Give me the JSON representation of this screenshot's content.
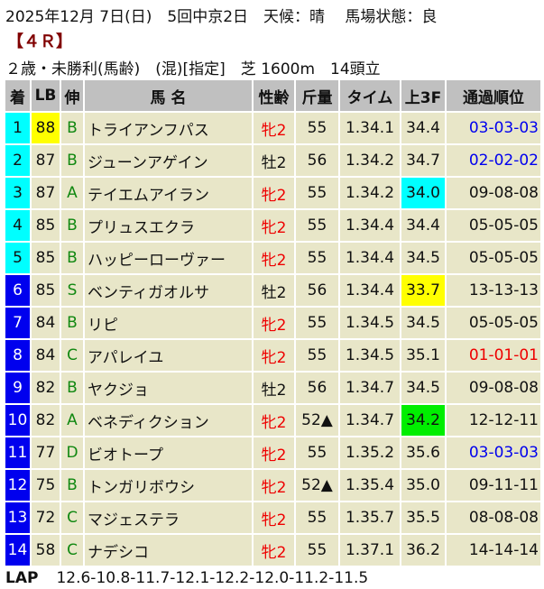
{
  "header": {
    "line1": "2025年12月 7日(日)　5回中京2日　天候：晴　 馬場状態：良",
    "race": "【４Ｒ】",
    "line3": "２歳・未勝利(馬齢)　(混)[指定]　芝 1600m　14頭立"
  },
  "columns": [
    "着",
    "LB",
    "伸",
    "馬 名",
    "性齢",
    "斤量",
    "タイム",
    "上3F",
    "通過順位"
  ],
  "colors": {
    "cell": "#e8e6c8",
    "header": "#c0c0c0",
    "rank_top": "#00ffff",
    "rank_other": "#0000ee",
    "highlight_yellow": "#ffff00",
    "highlight_cyan": "#00ffff",
    "highlight_green": "#00ee00",
    "pass_blue": "#0000ee",
    "pass_red": "#ee0000"
  },
  "rows": [
    {
      "rank": "1",
      "lb": "88",
      "nobi": "B",
      "name": "トライアンフパス",
      "sex": "牝2",
      "weight": "55",
      "time": "1.34.1",
      "f3": "34.4",
      "pass": "03-03-03",
      "lb_hl": "#ffff00",
      "pass_color": "#0000ee"
    },
    {
      "rank": "2",
      "lb": "87",
      "nobi": "B",
      "name": "ジューンアゲイン",
      "sex": "牡2",
      "weight": "56",
      "time": "1.34.2",
      "f3": "34.7",
      "pass": "02-02-02",
      "pass_color": "#0000ee"
    },
    {
      "rank": "3",
      "lb": "87",
      "nobi": "A",
      "name": "テイエムアイラン",
      "sex": "牝2",
      "weight": "55",
      "time": "1.34.2",
      "f3": "34.0",
      "pass": "09-08-08",
      "f3_hl": "#00ffff"
    },
    {
      "rank": "4",
      "lb": "85",
      "nobi": "B",
      "name": "プリュスエクラ",
      "sex": "牝2",
      "weight": "55",
      "time": "1.34.4",
      "f3": "34.4",
      "pass": "05-05-05"
    },
    {
      "rank": "5",
      "lb": "85",
      "nobi": "B",
      "name": "ハッピーローヴァー",
      "sex": "牝2",
      "weight": "55",
      "time": "1.34.4",
      "f3": "34.5",
      "pass": "05-05-05"
    },
    {
      "rank": "6",
      "lb": "85",
      "nobi": "S",
      "name": "ベンティガオルサ",
      "sex": "牡2",
      "weight": "56",
      "time": "1.34.4",
      "f3": "33.7",
      "pass": "13-13-13",
      "f3_hl": "#ffff00"
    },
    {
      "rank": "7",
      "lb": "84",
      "nobi": "B",
      "name": "リピ",
      "sex": "牝2",
      "weight": "55",
      "time": "1.34.5",
      "f3": "34.5",
      "pass": "05-05-05"
    },
    {
      "rank": "8",
      "lb": "84",
      "nobi": "C",
      "name": "アパレイユ",
      "sex": "牝2",
      "weight": "55",
      "time": "1.34.5",
      "f3": "35.1",
      "pass": "01-01-01",
      "pass_color": "#ee0000"
    },
    {
      "rank": "9",
      "lb": "82",
      "nobi": "B",
      "name": "ヤクジョ",
      "sex": "牡2",
      "weight": "56",
      "time": "1.34.7",
      "f3": "34.5",
      "pass": "09-08-08"
    },
    {
      "rank": "10",
      "lb": "82",
      "nobi": "A",
      "name": "ベネディクション",
      "sex": "牝2",
      "weight": "52▲",
      "time": "1.34.7",
      "f3": "34.2",
      "pass": "12-12-11",
      "f3_hl": "#00ee00"
    },
    {
      "rank": "11",
      "lb": "77",
      "nobi": "D",
      "name": "ビオトープ",
      "sex": "牝2",
      "weight": "55",
      "time": "1.35.2",
      "f3": "35.6",
      "pass": "03-03-03",
      "pass_color": "#0000ee"
    },
    {
      "rank": "12",
      "lb": "75",
      "nobi": "B",
      "name": "トンガリボウシ",
      "sex": "牝2",
      "weight": "52▲",
      "time": "1.35.4",
      "f3": "35.0",
      "pass": "09-11-11"
    },
    {
      "rank": "13",
      "lb": "72",
      "nobi": "C",
      "name": "マジェステラ",
      "sex": "牝2",
      "weight": "55",
      "time": "1.35.7",
      "f3": "35.5",
      "pass": "08-08-08"
    },
    {
      "rank": "14",
      "lb": "58",
      "nobi": "C",
      "name": "ナデシコ",
      "sex": "牝2",
      "weight": "55",
      "time": "1.37.1",
      "f3": "36.2",
      "pass": "14-14-14"
    }
  ],
  "lap": {
    "label": "LAP",
    "value": "12.6-10.8-11.7-12.1-12.2-12.0-11.2-11.5"
  }
}
